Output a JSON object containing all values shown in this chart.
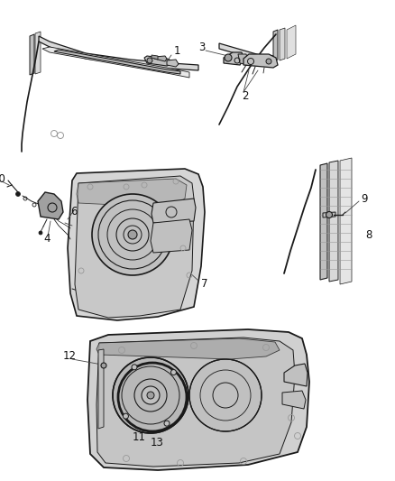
{
  "background_color": "#ffffff",
  "line_color": "#444444",
  "dark_line": "#1a1a1a",
  "light_gray": "#999999",
  "med_gray": "#777777",
  "fill_light": "#d8d8d8",
  "fill_med": "#c0c0c0",
  "fill_dark": "#a0a0a0",
  "label_color": "#111111",
  "label_fontsize": 8.5,
  "fig_width": 4.38,
  "fig_height": 5.33,
  "dpi": 100
}
